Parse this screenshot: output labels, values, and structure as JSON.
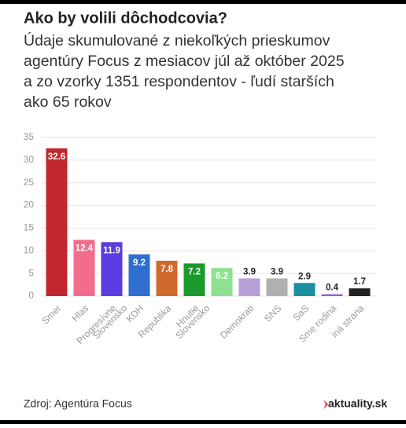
{
  "chart_data": {
    "type": "bar",
    "title": "Ako by volili dôchodcovia?",
    "subtitle": [
      "Údaje skumulované z niekoľkých prieskumov",
      "agentúry Focus z mesiacov júl až október 2025",
      "a zo vzorky 1351 respondentov - ľudí starších",
      "ako 65 rokov"
    ],
    "categories": [
      "Smer",
      "Hlas",
      "Progresívne Slovensko",
      "KDH",
      "Republika",
      "Hnutie Slovensko",
      null,
      "Demokrati",
      "SNS",
      "SaS",
      "Sme rodina",
      "iná strana"
    ],
    "values": [
      32.6,
      12.4,
      11.9,
      9.2,
      7.8,
      7.2,
      6.2,
      3.9,
      3.9,
      2.9,
      0.4,
      1.7
    ],
    "colors": [
      "#c0282d",
      "#f26d8d",
      "#5a3ce0",
      "#2f6fd0",
      "#d06a2c",
      "#1a9a2a",
      "#8fe08f",
      "#b59fd6",
      "#b0b0b0",
      "#1a8fa0",
      "#9b59d0",
      "#222222"
    ],
    "ylim": [
      0,
      35
    ],
    "yticks": [
      0,
      5,
      10,
      15,
      20,
      25,
      30,
      35
    ],
    "grid": true,
    "source": "Zdroj: Agentúra Focus",
    "logo": "aktuality.sk"
  }
}
